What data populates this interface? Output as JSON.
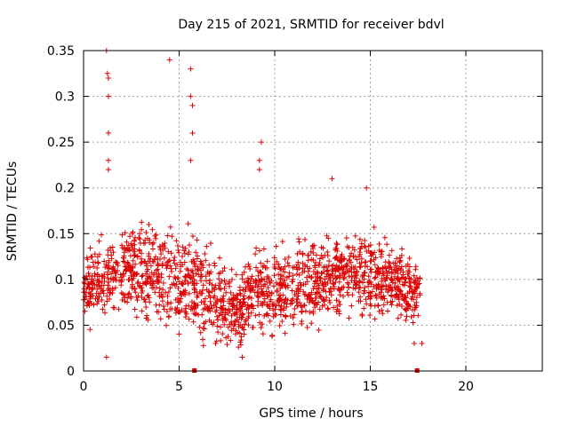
{
  "chart_data": {
    "type": "scatter",
    "title": "Day 215 of 2021, SRMTID for receiver bdvl",
    "xlabel": "GPS time / hours",
    "ylabel": "SRMTID / TECUs",
    "xlim": [
      0,
      24
    ],
    "ylim": [
      0,
      0.35
    ],
    "x_ticks": [
      0,
      5,
      10,
      15,
      20
    ],
    "x_tick_labels": [
      "0",
      "5",
      "10",
      "15",
      "20"
    ],
    "y_ticks": [
      0,
      0.05,
      0.1,
      0.15,
      0.2,
      0.25,
      0.3,
      0.35
    ],
    "y_tick_labels": [
      "0",
      "0.05",
      "0.1",
      "0.15",
      "0.2",
      "0.25",
      "0.3",
      "0.35"
    ],
    "grid": true,
    "marker": "+",
    "series_color": "#dd0000",
    "data_span_hours": [
      0,
      17.6
    ],
    "baseline_markers_x": [
      5.8,
      17.45
    ],
    "notable_points": [
      {
        "x": 1.2,
        "y": 0.35
      },
      {
        "x": 1.25,
        "y": 0.325
      },
      {
        "x": 1.3,
        "y": 0.32
      },
      {
        "x": 1.3,
        "y": 0.3
      },
      {
        "x": 1.3,
        "y": 0.26
      },
      {
        "x": 1.3,
        "y": 0.23
      },
      {
        "x": 1.3,
        "y": 0.22
      },
      {
        "x": 4.5,
        "y": 0.34
      },
      {
        "x": 5.6,
        "y": 0.33
      },
      {
        "x": 5.6,
        "y": 0.3
      },
      {
        "x": 5.7,
        "y": 0.29
      },
      {
        "x": 5.7,
        "y": 0.26
      },
      {
        "x": 5.6,
        "y": 0.23
      },
      {
        "x": 9.3,
        "y": 0.25
      },
      {
        "x": 9.2,
        "y": 0.23
      },
      {
        "x": 9.2,
        "y": 0.22
      },
      {
        "x": 13.0,
        "y": 0.21
      },
      {
        "x": 14.8,
        "y": 0.2
      },
      {
        "x": 1.2,
        "y": 0.015
      },
      {
        "x": 8.3,
        "y": 0.015
      },
      {
        "x": 17.3,
        "y": 0.03
      },
      {
        "x": 17.7,
        "y": 0.03
      }
    ],
    "trend": [
      {
        "x": 0,
        "y": 0.09
      },
      {
        "x": 1,
        "y": 0.1
      },
      {
        "x": 2,
        "y": 0.11
      },
      {
        "x": 3,
        "y": 0.11
      },
      {
        "x": 4,
        "y": 0.105
      },
      {
        "x": 5,
        "y": 0.1
      },
      {
        "x": 6,
        "y": 0.095
      },
      {
        "x": 7,
        "y": 0.08
      },
      {
        "x": 8,
        "y": 0.065
      },
      {
        "x": 9,
        "y": 0.09
      },
      {
        "x": 10,
        "y": 0.085
      },
      {
        "x": 11,
        "y": 0.09
      },
      {
        "x": 12,
        "y": 0.1
      },
      {
        "x": 13,
        "y": 0.105
      },
      {
        "x": 14,
        "y": 0.11
      },
      {
        "x": 15,
        "y": 0.105
      },
      {
        "x": 16,
        "y": 0.1
      },
      {
        "x": 17,
        "y": 0.09
      },
      {
        "x": 17.6,
        "y": 0.085
      }
    ],
    "spread": [
      {
        "x": 0,
        "y": 0.035
      },
      {
        "x": 2,
        "y": 0.04
      },
      {
        "x": 4,
        "y": 0.045
      },
      {
        "x": 6,
        "y": 0.045
      },
      {
        "x": 8,
        "y": 0.035
      },
      {
        "x": 10,
        "y": 0.04
      },
      {
        "x": 12,
        "y": 0.04
      },
      {
        "x": 14,
        "y": 0.04
      },
      {
        "x": 16,
        "y": 0.035
      },
      {
        "x": 17.6,
        "y": 0.03
      }
    ]
  }
}
